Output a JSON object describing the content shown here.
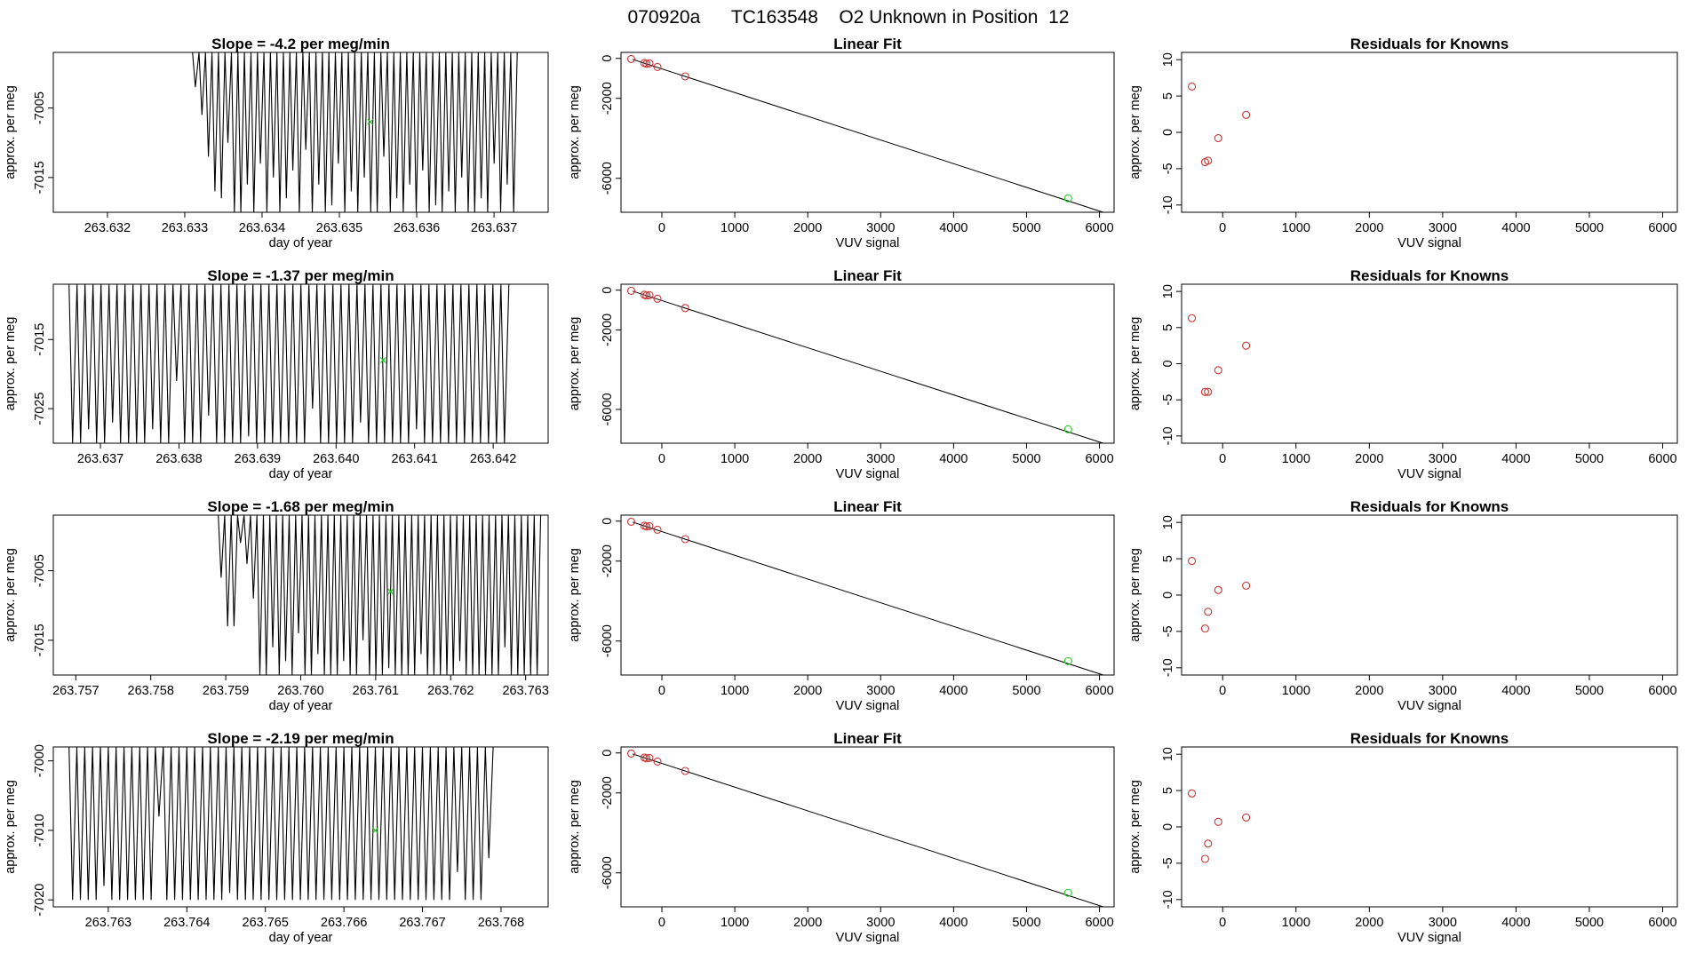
{
  "title": "070920a      TC163548    O2 Unknown in Position  12",
  "colors": {
    "axis": "#000000",
    "trace": "#000000",
    "unknown": "#22cc22",
    "known": "#cc3333"
  },
  "chart_data": [
    {
      "type": "line",
      "panel": "time-series",
      "row": 1,
      "title": "Slope =  -4.2  per meg/min",
      "xlabel": "day of year",
      "ylabel": "approx. per meg",
      "xlim": [
        263.6313,
        263.6377
      ],
      "ylim": [
        -7020,
        -6997
      ],
      "xticks": [
        "263.632",
        "263.633",
        "263.634",
        "263.635",
        "263.636",
        "263.637"
      ],
      "yticks": [
        "-7005",
        "-7015"
      ],
      "trace_x_range": [
        263.6331,
        263.6373
      ],
      "trace_bottom": -7020,
      "trace_dips": [
        -7002,
        -7006,
        -7012,
        -7017,
        -7018,
        -7010,
        -7020,
        -7020,
        -7016,
        -7020,
        -7013,
        -7020,
        -7015,
        -7020,
        -7018,
        -7014,
        -7020,
        -7011,
        -7020,
        -7016,
        -7020,
        -7019,
        -7013,
        -7020,
        -7017,
        -7020,
        -7015,
        -7020,
        -7020,
        -7012,
        -7020,
        -7018,
        -7020,
        -7016,
        -7020,
        -7014,
        -7020,
        -7019,
        -7020,
        -7017,
        -7020,
        -7015,
        -7020,
        -7020,
        -7018,
        -7020,
        -7013,
        -7020,
        -7016,
        -7020
      ],
      "marker": {
        "x": 263.6354,
        "y": -7007
      }
    },
    {
      "type": "scatter",
      "panel": "linear-fit",
      "row": 1,
      "title": "Linear Fit",
      "xlabel": "VUV signal",
      "ylabel": "approx. per meg",
      "xlim": [
        -560,
        6200
      ],
      "ylim": [
        -7700,
        300
      ],
      "xticks": [
        0,
        1000,
        2000,
        3000,
        4000,
        5000,
        6000
      ],
      "yticks": [
        0,
        -2000,
        -6000
      ],
      "fit_line": {
        "x": [
          -400,
          6050
        ],
        "y": [
          -50,
          -7700
        ]
      },
      "knowns": [
        {
          "x": -420,
          "y": -30
        },
        {
          "x": -240,
          "y": -230
        },
        {
          "x": -210,
          "y": -270
        },
        {
          "x": -170,
          "y": -250
        },
        {
          "x": -60,
          "y": -430
        },
        {
          "x": 320,
          "y": -900
        }
      ],
      "unknown": {
        "x": 5570,
        "y": -7000
      }
    },
    {
      "type": "scatter",
      "panel": "residuals",
      "row": 1,
      "title": "Residuals for Knowns",
      "xlabel": "VUV signal",
      "ylabel": "approx. per meg",
      "xlim": [
        -560,
        6200
      ],
      "ylim": [
        -11,
        11
      ],
      "xticks": [
        0,
        1000,
        2000,
        3000,
        4000,
        5000,
        6000
      ],
      "yticks": [
        10,
        5,
        0,
        -5,
        -10
      ],
      "points": [
        {
          "x": -420,
          "y": 6.3
        },
        {
          "x": -240,
          "y": -4.1
        },
        {
          "x": -200,
          "y": -3.9
        },
        {
          "x": -60,
          "y": -0.8
        },
        {
          "x": 320,
          "y": 2.4
        }
      ]
    },
    {
      "type": "line",
      "panel": "time-series",
      "row": 2,
      "title": "Slope =  -1.37  per meg/min",
      "xlabel": "day of year",
      "ylabel": "approx. per meg",
      "xlim": [
        263.6364,
        263.6427
      ],
      "ylim": [
        -7030,
        -7007
      ],
      "xticks": [
        "263.637",
        "263.638",
        "263.639",
        "263.640",
        "263.641",
        "263.642"
      ],
      "yticks": [
        "-7015",
        "-7025"
      ],
      "trace_x_range": [
        263.6366,
        263.6422
      ],
      "trace_bottom": -7030,
      "trace_dips": [
        -7030,
        -7030,
        -7028,
        -7030,
        -7030,
        -7027,
        -7030,
        -7030,
        -7030,
        -7030,
        -7028,
        -7030,
        -7030,
        -7021,
        -7030,
        -7030,
        -7030,
        -7026,
        -7030,
        -7030,
        -7030,
        -7030,
        -7029,
        -7030,
        -7030,
        -7030,
        -7030,
        -7030,
        -7030,
        -7030,
        -7025,
        -7030,
        -7030,
        -7030,
        -7030,
        -7030,
        -7027,
        -7030,
        -7030,
        -7030,
        -7030,
        -7030,
        -7030,
        -7028,
        -7030,
        -7030,
        -7030,
        -7030,
        -7030,
        -7030,
        -7030,
        -7030,
        -7030,
        -7030,
        -7030
      ],
      "marker": {
        "x": 263.6406,
        "y": -7018
      }
    },
    {
      "type": "scatter",
      "panel": "linear-fit",
      "row": 2,
      "title": "Linear Fit",
      "xlabel": "VUV signal",
      "ylabel": "approx. per meg",
      "xlim": [
        -560,
        6200
      ],
      "ylim": [
        -7700,
        300
      ],
      "xticks": [
        0,
        1000,
        2000,
        3000,
        4000,
        5000,
        6000
      ],
      "yticks": [
        0,
        -2000,
        -6000
      ],
      "fit_line": {
        "x": [
          -400,
          6050
        ],
        "y": [
          -50,
          -7700
        ]
      },
      "knowns": [
        {
          "x": -420,
          "y": -30
        },
        {
          "x": -240,
          "y": -230
        },
        {
          "x": -210,
          "y": -270
        },
        {
          "x": -170,
          "y": -250
        },
        {
          "x": -60,
          "y": -430
        },
        {
          "x": 320,
          "y": -900
        }
      ],
      "unknown": {
        "x": 5570,
        "y": -7000
      }
    },
    {
      "type": "scatter",
      "panel": "residuals",
      "row": 2,
      "title": "Residuals for Knowns",
      "xlabel": "VUV signal",
      "ylabel": "approx. per meg",
      "xlim": [
        -560,
        6200
      ],
      "ylim": [
        -11,
        11
      ],
      "xticks": [
        0,
        1000,
        2000,
        3000,
        4000,
        5000,
        6000
      ],
      "yticks": [
        10,
        5,
        0,
        -5,
        -10
      ],
      "points": [
        {
          "x": -420,
          "y": 6.3
        },
        {
          "x": -240,
          "y": -3.9
        },
        {
          "x": -200,
          "y": -3.9
        },
        {
          "x": -60,
          "y": -0.9
        },
        {
          "x": 320,
          "y": 2.5
        }
      ]
    },
    {
      "type": "line",
      "panel": "time-series",
      "row": 3,
      "title": "Slope =  -1.68  per meg/min",
      "xlabel": "day of year",
      "ylabel": "approx. per meg",
      "xlim": [
        263.7567,
        263.7633
      ],
      "ylim": [
        -7020,
        -6997
      ],
      "xticks": [
        "263.757",
        "263.758",
        "263.759",
        "263.760",
        "263.761",
        "263.762",
        "263.763"
      ],
      "yticks": [
        "-7005",
        "-7015"
      ],
      "trace_x_range": [
        263.7589,
        263.7632
      ],
      "trace_bottom": -7020,
      "trace_dips": [
        -7006,
        -7013,
        -7013,
        -7001,
        -7004,
        -7009,
        -7020,
        -7020,
        -7016,
        -7020,
        -7018,
        -7020,
        -7014,
        -7020,
        -7020,
        -7017,
        -7020,
        -7020,
        -7020,
        -7018,
        -7020,
        -7020,
        -7015,
        -7020,
        -7020,
        -7020,
        -7019,
        -7020,
        -7020,
        -7020,
        -7020,
        -7017,
        -7020,
        -7020,
        -7020,
        -7020,
        -7020,
        -7018,
        -7020,
        -7020,
        -7020,
        -7020,
        -7020,
        -7020,
        -7016,
        -7020,
        -7020,
        -7020,
        -7020,
        -7020
      ],
      "marker": {
        "x": 263.7612,
        "y": -7008
      }
    },
    {
      "type": "scatter",
      "panel": "linear-fit",
      "row": 3,
      "title": "Linear Fit",
      "xlabel": "VUV signal",
      "ylabel": "approx. per meg",
      "xlim": [
        -560,
        6200
      ],
      "ylim": [
        -7700,
        300
      ],
      "xticks": [
        0,
        1000,
        2000,
        3000,
        4000,
        5000,
        6000
      ],
      "yticks": [
        0,
        -2000,
        -6000
      ],
      "fit_line": {
        "x": [
          -400,
          6050
        ],
        "y": [
          -50,
          -7700
        ]
      },
      "knowns": [
        {
          "x": -420,
          "y": -30
        },
        {
          "x": -240,
          "y": -230
        },
        {
          "x": -210,
          "y": -270
        },
        {
          "x": -170,
          "y": -250
        },
        {
          "x": -60,
          "y": -430
        },
        {
          "x": 320,
          "y": -900
        }
      ],
      "unknown": {
        "x": 5570,
        "y": -7000
      }
    },
    {
      "type": "scatter",
      "panel": "residuals",
      "row": 3,
      "title": "Residuals for Knowns",
      "xlabel": "VUV signal",
      "ylabel": "approx. per meg",
      "xlim": [
        -560,
        6200
      ],
      "ylim": [
        -11,
        11
      ],
      "xticks": [
        0,
        1000,
        2000,
        3000,
        4000,
        5000,
        6000
      ],
      "yticks": [
        10,
        5,
        0,
        -5,
        -10
      ],
      "points": [
        {
          "x": -420,
          "y": 4.7
        },
        {
          "x": -240,
          "y": -4.6
        },
        {
          "x": -200,
          "y": -2.3
        },
        {
          "x": -60,
          "y": 0.7
        },
        {
          "x": 320,
          "y": 1.3
        }
      ]
    },
    {
      "type": "line",
      "panel": "time-series",
      "row": 4,
      "title": "Slope =  -2.19  per meg/min",
      "xlabel": "day of year",
      "ylabel": "approx. per meg",
      "xlim": [
        263.7623,
        263.7686
      ],
      "ylim": [
        -7021,
        -6998
      ],
      "xticks": [
        "263.763",
        "263.764",
        "263.765",
        "263.766",
        "263.767",
        "263.768"
      ],
      "yticks": [
        "-7000",
        "-7010",
        "-7020"
      ],
      "trace_x_range": [
        263.7625,
        263.7679
      ],
      "trace_bottom": -7020,
      "trace_dips": [
        -7020,
        -7020,
        -7020,
        -7020,
        -7018,
        -7020,
        -7020,
        -7020,
        -7020,
        -7020,
        -7020,
        -7008,
        -7020,
        -7020,
        -7020,
        -7020,
        -7020,
        -7020,
        -7020,
        -7020,
        -7019,
        -7020,
        -7020,
        -7020,
        -7020,
        -7020,
        -7020,
        -7020,
        -7020,
        -7020,
        -7020,
        -7020,
        -7020,
        -7020,
        -7020,
        -7020,
        -7020,
        -7020,
        -7020,
        -7020,
        -7020,
        -7020,
        -7020,
        -7020,
        -7020,
        -7020,
        -7020,
        -7020,
        -7020,
        -7016,
        -7020,
        -7020,
        -7020,
        -7014
      ],
      "marker": {
        "x": 263.7664,
        "y": -7010
      }
    },
    {
      "type": "scatter",
      "panel": "linear-fit",
      "row": 4,
      "title": "Linear Fit",
      "xlabel": "VUV signal",
      "ylabel": "approx. per meg",
      "xlim": [
        -560,
        6200
      ],
      "ylim": [
        -7700,
        300
      ],
      "xticks": [
        0,
        1000,
        2000,
        3000,
        4000,
        5000,
        6000
      ],
      "yticks": [
        0,
        -2000,
        -6000
      ],
      "fit_line": {
        "x": [
          -400,
          6050
        ],
        "y": [
          -50,
          -7700
        ]
      },
      "knowns": [
        {
          "x": -420,
          "y": -30
        },
        {
          "x": -240,
          "y": -230
        },
        {
          "x": -210,
          "y": -270
        },
        {
          "x": -170,
          "y": -250
        },
        {
          "x": -60,
          "y": -430
        },
        {
          "x": 320,
          "y": -900
        }
      ],
      "unknown": {
        "x": 5570,
        "y": -7000
      }
    },
    {
      "type": "scatter",
      "panel": "residuals",
      "row": 4,
      "title": "Residuals for Knowns",
      "xlabel": "VUV signal",
      "ylabel": "approx. per meg",
      "xlim": [
        -560,
        6200
      ],
      "ylim": [
        -11,
        11
      ],
      "xticks": [
        0,
        1000,
        2000,
        3000,
        4000,
        5000,
        6000
      ],
      "yticks": [
        10,
        5,
        0,
        -5,
        -10
      ],
      "points": [
        {
          "x": -420,
          "y": 4.6
        },
        {
          "x": -240,
          "y": -4.4
        },
        {
          "x": -200,
          "y": -2.3
        },
        {
          "x": -60,
          "y": 0.7
        },
        {
          "x": 320,
          "y": 1.3
        }
      ]
    }
  ]
}
